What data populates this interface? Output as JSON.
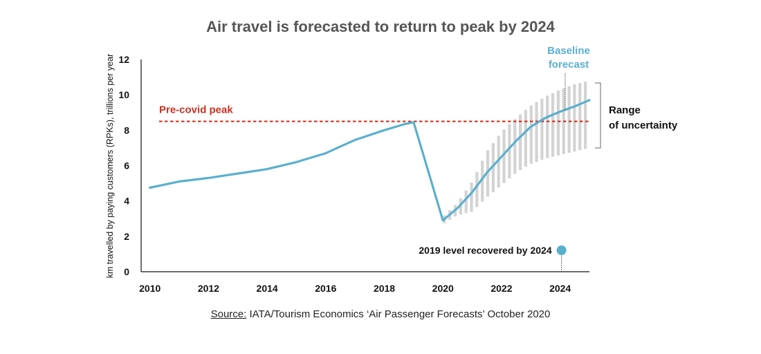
{
  "chart_data": {
    "type": "line",
    "title": "Air travel is forecasted to return to peak by 2024",
    "xlabel": "",
    "ylabel": "km travelled by paying customers (RPKs), trillions per year",
    "xlim": [
      2009.7,
      2025
    ],
    "ylim": [
      0,
      12
    ],
    "x_ticks": [
      2010,
      2012,
      2014,
      2016,
      2018,
      2020,
      2022,
      2024
    ],
    "y_ticks": [
      0,
      2,
      4,
      6,
      8,
      10,
      12
    ],
    "series": [
      {
        "name": "Baseline forecast",
        "color": "#5aafcf",
        "x": [
          2010,
          2011,
          2012,
          2013,
          2014,
          2015,
          2016,
          2017,
          2018,
          2018.7,
          2019,
          2020,
          2020.5,
          2021,
          2021.5,
          2022,
          2022.5,
          2023,
          2023.5,
          2024,
          2024.5,
          2025
        ],
        "y": [
          4.75,
          5.1,
          5.3,
          5.55,
          5.8,
          6.2,
          6.7,
          7.45,
          8.0,
          8.35,
          8.45,
          2.9,
          3.6,
          4.5,
          5.6,
          6.5,
          7.4,
          8.2,
          8.7,
          9.05,
          9.35,
          9.7
        ]
      }
    ],
    "uncertainty_band": {
      "label": "Range of uncertainty",
      "x": [
        2020,
        2020.5,
        2021,
        2021.5,
        2022,
        2022.5,
        2023,
        2023.5,
        2024,
        2024.5,
        2025
      ],
      "lower": [
        2.7,
        3.2,
        3.4,
        4.2,
        4.9,
        5.6,
        6.1,
        6.4,
        6.6,
        6.8,
        7.0
      ],
      "upper": [
        3.1,
        3.9,
        5.1,
        6.8,
        7.9,
        8.7,
        9.4,
        9.9,
        10.3,
        10.6,
        10.8
      ]
    },
    "reference_lines": [
      {
        "label": "Pre-covid peak",
        "y": 8.5,
        "color": "#d03020",
        "style": "dashed"
      }
    ],
    "annotations": [
      {
        "text": "Baseline",
        "text2": "forecast",
        "color": "#5aafcf"
      },
      {
        "text": "Range",
        "text2": "of uncertainty",
        "color": "#111111"
      },
      {
        "text": "2019 level recovered by 2024",
        "color": "#111111",
        "x": 2024,
        "y": 1.2
      }
    ]
  },
  "source": {
    "label": "Source:",
    "text": " IATA/Tourism Economics ‘Air Passenger Forecasts’ October 2020"
  }
}
